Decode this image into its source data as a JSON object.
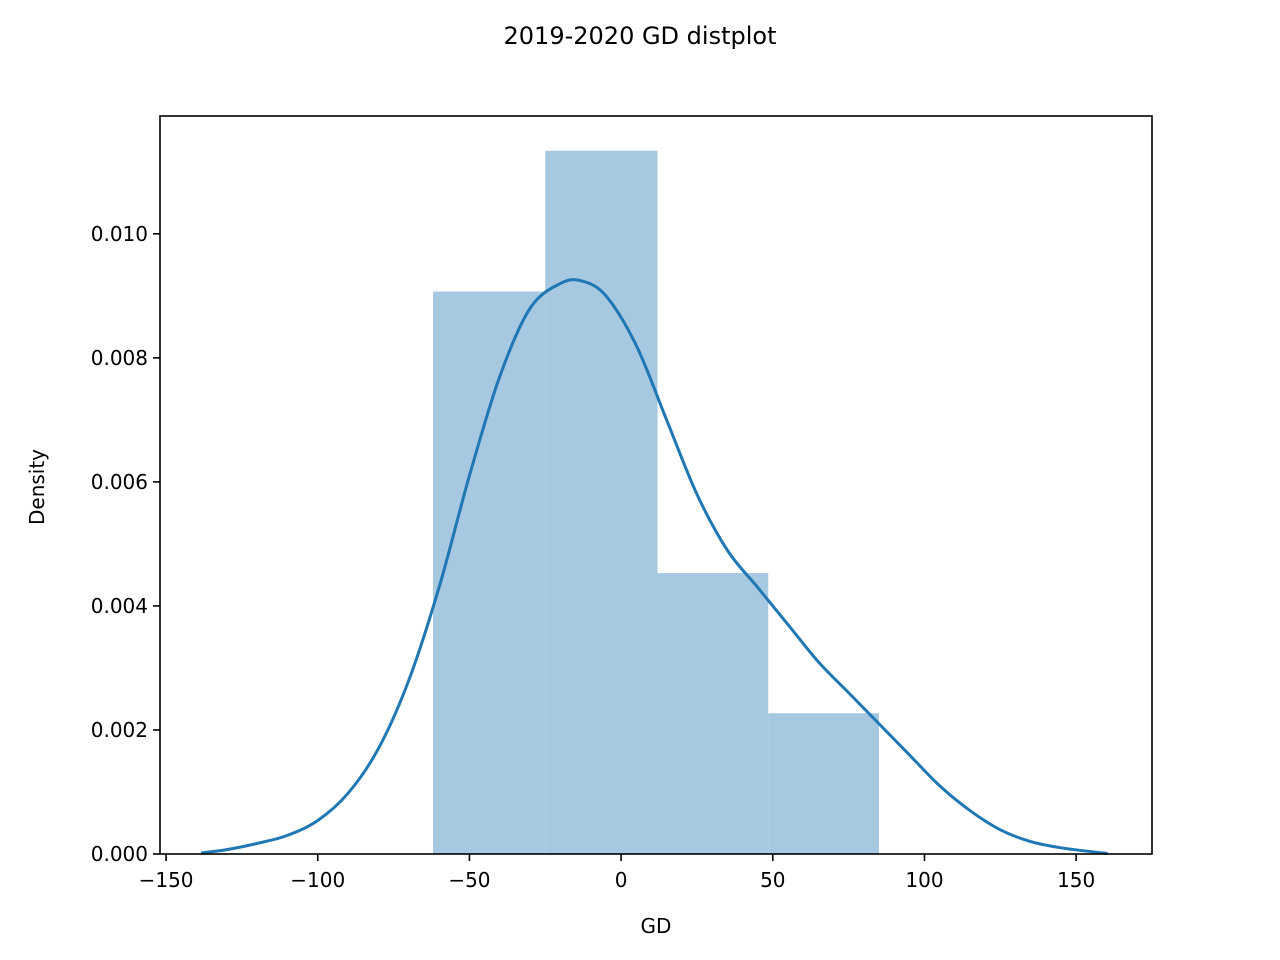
{
  "chart_data": {
    "type": "bar",
    "title": "2019-2020 GD distplot",
    "xlabel": "GD",
    "ylabel": "Density",
    "xlim": [
      -152,
      175
    ],
    "ylim": [
      0,
      0.0119
    ],
    "xticks": [
      -150,
      -100,
      -50,
      0,
      50,
      100,
      150
    ],
    "xtick_labels": [
      "−150",
      "−100",
      "−50",
      "0",
      "50",
      "100",
      "150"
    ],
    "yticks": [
      0,
      0.002,
      0.004,
      0.006,
      0.008,
      0.01
    ],
    "ytick_labels": [
      "0.000",
      "0.002",
      "0.004",
      "0.006",
      "0.008",
      "0.010"
    ],
    "grid": false,
    "histogram": {
      "bins": [
        {
          "x0": -62,
          "x1": -25,
          "density": 0.00907
        },
        {
          "x0": -25,
          "x1": 12,
          "density": 0.01134
        },
        {
          "x0": 12,
          "x1": 48.5,
          "density": 0.00453
        },
        {
          "x0": 48.5,
          "x1": 85,
          "density": 0.00227
        }
      ],
      "color": "#a6c8e0"
    },
    "kde": {
      "color": "#1f77b4",
      "x": [
        -138,
        -130,
        -120,
        -110,
        -100,
        -90,
        -80,
        -70,
        -60,
        -50,
        -40,
        -30,
        -20,
        -13,
        -5,
        5,
        15,
        25,
        35,
        45,
        55,
        65,
        75,
        85,
        95,
        105,
        115,
        125,
        135,
        145,
        160
      ],
      "y": [
        2e-05,
        7e-05,
        0.00017,
        0.0003,
        0.00054,
        0.00098,
        0.0017,
        0.0028,
        0.0043,
        0.0061,
        0.0077,
        0.0088,
        0.0092,
        0.00924,
        0.009,
        0.0082,
        0.007,
        0.0058,
        0.0049,
        0.0043,
        0.0037,
        0.0031,
        0.0026,
        0.0021,
        0.0016,
        0.0011,
        0.0007,
        0.00039,
        0.0002,
        0.0001,
        1e-05
      ]
    }
  }
}
